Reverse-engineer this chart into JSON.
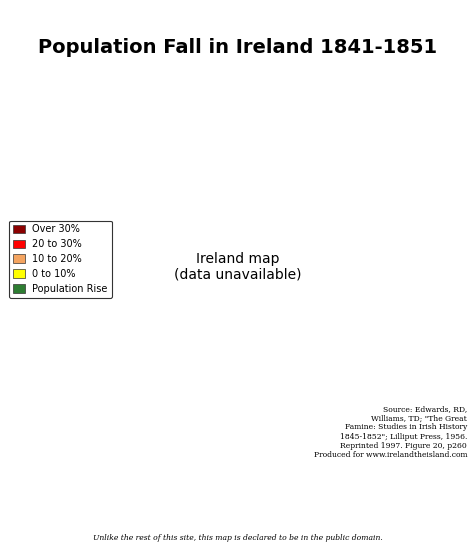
{
  "title": "Population Fall in Ireland 1841-1851",
  "title_fontsize": 14,
  "title_fontweight": "bold",
  "background_color": "#ffffff",
  "legend_items": [
    {
      "label": "Over 30%",
      "color": "#8B0000"
    },
    {
      "label": "20 to 30%",
      "color": "#FF0000"
    },
    {
      "label": "10 to 20%",
      "color": "#F4A460"
    },
    {
      "label": "0 to 10%",
      "color": "#FFFF00"
    },
    {
      "label": "Population Rise",
      "color": "#2E7D32"
    }
  ],
  "county_colors": {
    "Antrim": "#F4A460",
    "Armagh": "#F4A460",
    "Carlow": "#FF0000",
    "Cavan": "#FF0000",
    "Clare": "#8B0000",
    "Cork": "#8B0000",
    "Donegal": "#FF0000",
    "Down": "#F4A460",
    "Dublin": "#F4A460",
    "Fermanagh": "#8B0000",
    "Galway": "#8B0000",
    "Kerry": "#8B0000",
    "Kildare": "#F4A460",
    "Kilkenny": "#FF0000",
    "Laois": "#FF0000",
    "Leitrim": "#8B0000",
    "Limerick": "#8B0000",
    "Londonderry": "#FFFF00",
    "Louth": "#F4A460",
    "Mayo": "#8B0000",
    "Meath": "#F4A460",
    "Monaghan": "#FF0000",
    "Offaly": "#FF0000",
    "Roscommon": "#8B0000",
    "Sligo": "#8B0000",
    "Tipperary": "#8B0000",
    "Tyrone": "#F4A460",
    "Waterford": "#FF0000",
    "Westmeath": "#FF0000",
    "Wexford": "#FF0000",
    "Wicklow": "#F4A460",
    "Belfast": "#2E7D32",
    "Derry": "#FFFF00"
  },
  "xlim": [
    -10.7,
    -5.8
  ],
  "ylim": [
    51.3,
    55.55
  ],
  "source_text": "Source: Edwards, RD,\nWilliams, TD; \"The Great\nFamine: Studies in Irish History\n1845-1852\"; Lilliput Press, 1956.\nReprinted 1997. Figure 20, p260\nProduced for www.irelandtheisland.com",
  "footer_text": "Unlike the rest of this site, this map is declared to be in the public domain."
}
